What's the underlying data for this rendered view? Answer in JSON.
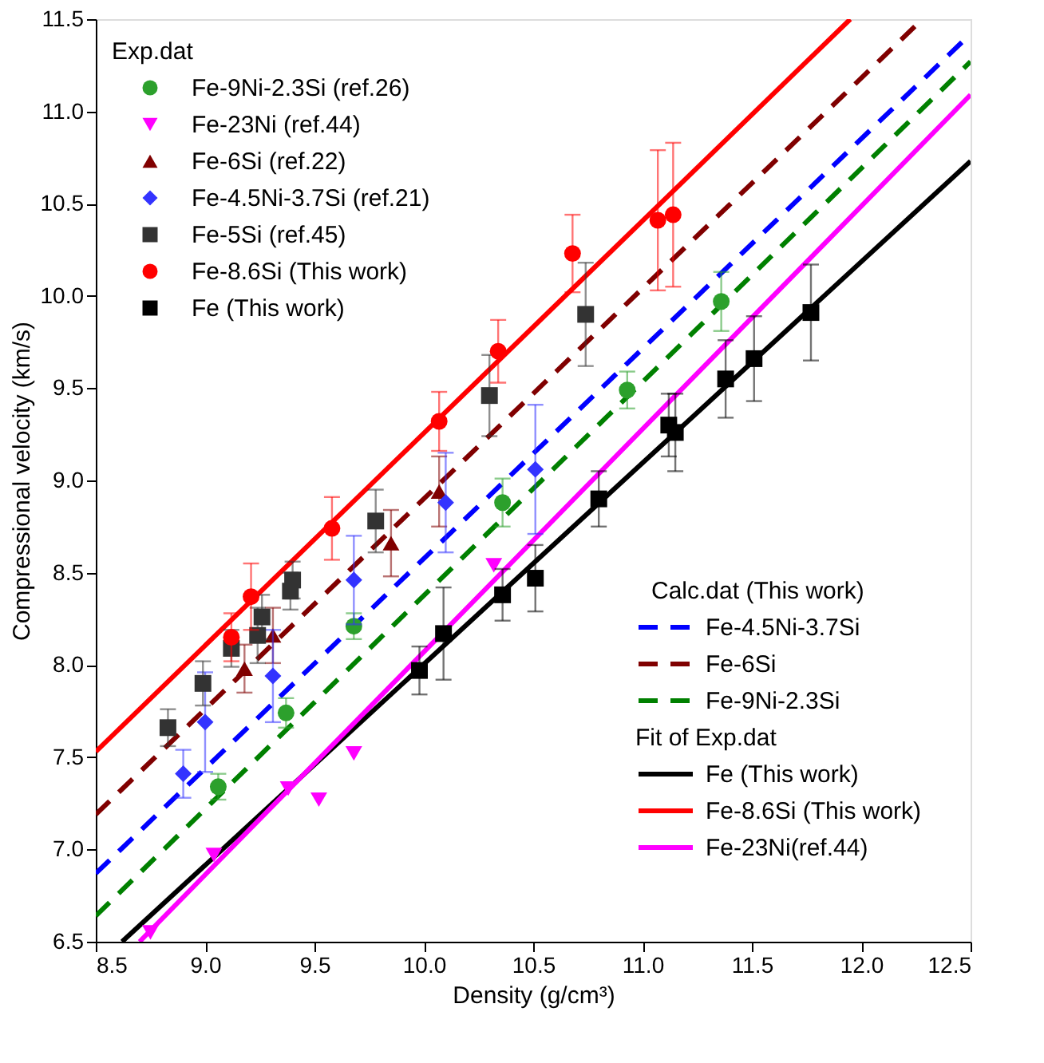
{
  "chart_data": {
    "type": "scatter",
    "xlabel": "Density (g/cm³)",
    "ylabel": "Compressional velocity (km/s)",
    "xlim": [
      8.5,
      12.5
    ],
    "ylim": [
      6.5,
      11.5
    ],
    "xticks": [
      8.5,
      {
        "value": 9,
        "label": "9.0"
      },
      9.5,
      {
        "value": 10,
        "label": "10.0"
      },
      10.5,
      {
        "value": 11,
        "label": "11.0"
      },
      11.5,
      {
        "value": 12,
        "label": "12.0"
      },
      12.5
    ],
    "yticks": [
      6.5,
      {
        "value": 7,
        "label": "7.0"
      },
      7.5,
      {
        "value": 8,
        "label": "8.0"
      },
      8.5,
      {
        "value": 9,
        "label": "9.0"
      },
      9.5,
      {
        "value": 10,
        "label": "10.0"
      },
      10.5,
      {
        "value": 11,
        "label": "11.0"
      },
      11.5
    ],
    "grid": false,
    "legend": "top left",
    "legend_title": "Exp.dat",
    "annotations": [
      "Calc.dat (This work)",
      "Fit of Exp.dat"
    ],
    "series": [
      {
        "name": "Fe-9Ni-2.3Si (ref.26)",
        "type": "scatter",
        "marker": "circle",
        "color": "#2ca02c",
        "x": [
          9.06,
          9.37,
          9.68,
          10.36,
          10.93,
          11.36
        ],
        "values": [
          7.34,
          7.74,
          8.21,
          8.88,
          9.49,
          9.97
        ],
        "errors": [
          0.07,
          0.08,
          0.07,
          0.13,
          0.1,
          0.16
        ]
      },
      {
        "name": "Fe-23Ni (ref.44)",
        "type": "scatter",
        "marker": "triangle-down",
        "color": "#ff00ff",
        "x": [
          8.75,
          9.04,
          9.38,
          9.52,
          9.68,
          10.32
        ],
        "values": [
          6.55,
          6.97,
          7.33,
          7.27,
          7.52,
          8.54
        ]
      },
      {
        "name": "Fe-6Si (ref.22)",
        "type": "scatter",
        "marker": "triangle",
        "color": "#800000",
        "x": [
          9.18,
          9.31,
          9.85,
          10.07
        ],
        "values": [
          7.98,
          8.16,
          8.66,
          8.94
        ],
        "errors": [
          0.13,
          0.15,
          0.18,
          0.19
        ]
      },
      {
        "name": "Fe-4.5Ni-3.7Si (ref.21)",
        "type": "scatter",
        "marker": "diamond",
        "color": "#3333ff",
        "x": [
          8.9,
          9.0,
          9.31,
          9.68,
          10.1,
          10.51
        ],
        "values": [
          7.41,
          7.69,
          7.94,
          8.46,
          8.88,
          9.06
        ],
        "errors": [
          0.13,
          0.27,
          0.25,
          0.24,
          0.27,
          0.35
        ]
      },
      {
        "name": "Fe-5Si (ref.45)",
        "type": "scatter",
        "marker": "square",
        "color": "#333333",
        "x": [
          8.83,
          8.99,
          9.12,
          9.24,
          9.26,
          9.39,
          9.4,
          9.78,
          10.3,
          10.74
        ],
        "values": [
          7.66,
          7.9,
          8.09,
          8.16,
          8.26,
          8.4,
          8.46,
          8.78,
          9.46,
          9.9
        ],
        "errors": [
          0.1,
          0.12,
          0.1,
          0.15,
          0.12,
          0.1,
          0.1,
          0.17,
          0.22,
          0.28
        ]
      },
      {
        "name": "Fe-8.6Si (This work)",
        "type": "scatter",
        "marker": "circle",
        "color": "#ff0000",
        "x": [
          9.12,
          9.21,
          9.58,
          10.07,
          10.34,
          10.68,
          11.07,
          11.14
        ],
        "values": [
          8.15,
          8.37,
          8.74,
          9.32,
          9.7,
          10.23,
          10.41,
          10.44
        ],
        "errors": [
          0.13,
          0.18,
          0.17,
          0.16,
          0.17,
          0.21,
          0.38,
          0.39
        ]
      },
      {
        "name": "Fe (This work)",
        "type": "scatter",
        "marker": "square",
        "color": "#000000",
        "x": [
          9.98,
          10.09,
          10.36,
          10.51,
          10.8,
          11.12,
          11.15,
          11.38,
          11.51,
          11.77
        ],
        "values": [
          7.97,
          8.17,
          8.38,
          8.47,
          8.9,
          9.3,
          9.26,
          9.55,
          9.66,
          9.91
        ],
        "errors": [
          0.13,
          0.25,
          0.14,
          0.18,
          0.15,
          0.17,
          0.21,
          0.21,
          0.23,
          0.26
        ]
      },
      {
        "name": "Fe-4.5Ni-3.7Si",
        "type": "line",
        "line_style": "dashed",
        "color": "#0000ff",
        "x": [
          8.5,
          12.5
        ],
        "values": [
          6.87,
          11.42
        ]
      },
      {
        "name": "Fe-6Si",
        "type": "line",
        "line_style": "dashed",
        "color": "#800000",
        "x": [
          8.5,
          12.28
        ],
        "values": [
          7.19,
          11.5
        ]
      },
      {
        "name": "Fe-9Ni-2.3Si",
        "type": "line",
        "line_style": "dashed",
        "color": "#008000",
        "x": [
          8.5,
          12.5
        ],
        "values": [
          6.64,
          11.27
        ]
      },
      {
        "name": "Fe (This work)",
        "type": "line",
        "line_style": "solid",
        "color": "#000000",
        "x": [
          8.62,
          12.5
        ],
        "values": [
          6.5,
          10.73
        ]
      },
      {
        "name": "Fe-8.6Si (This work)",
        "type": "line",
        "line_style": "solid",
        "color": "#ff0000",
        "x": [
          8.5,
          11.95
        ],
        "values": [
          7.53,
          11.5
        ]
      },
      {
        "name": "Fe-23Ni(ref.44)",
        "type": "line",
        "line_style": "solid",
        "color": "#ff00ff",
        "x": [
          8.7,
          12.5
        ],
        "values": [
          6.5,
          11.09
        ]
      }
    ]
  }
}
